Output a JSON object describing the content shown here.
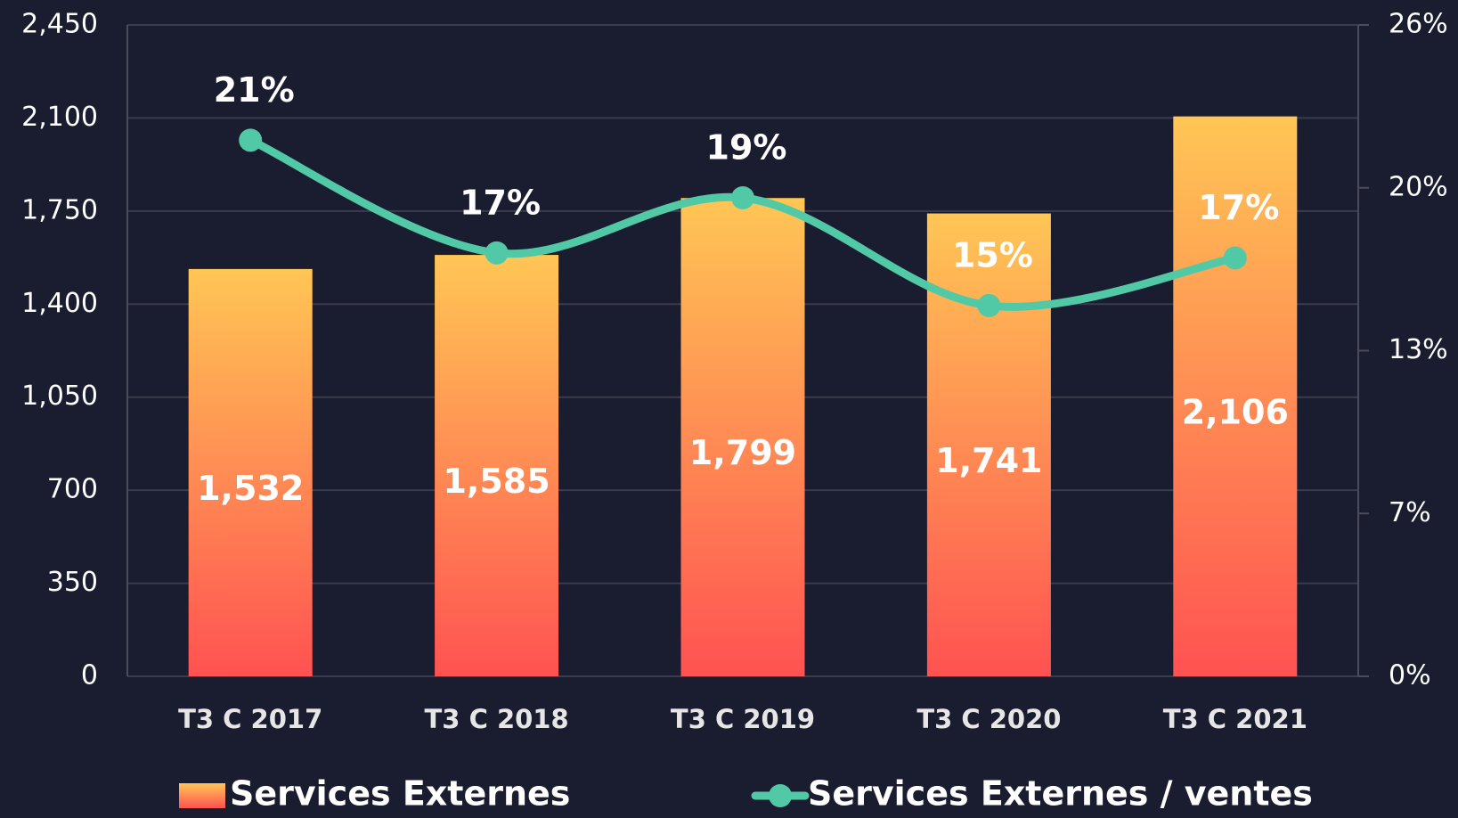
{
  "chart_data": {
    "type": "bar_line",
    "categories": [
      "T3 C 2017",
      "T3 C 2018",
      "T3 C 2019",
      "T3 C 2020",
      "T3 C 2021"
    ],
    "series": [
      {
        "name": "Services Externes",
        "type": "bar",
        "color": [
          "#ffc655",
          "#ff5252"
        ],
        "values": [
          1532,
          1585,
          1799,
          1741,
          2106
        ],
        "value_labels": [
          "1,532",
          "1,585",
          "1,799",
          "1,741",
          "2,106"
        ]
      },
      {
        "name": "Services Externes / ventes",
        "type": "line",
        "axis": "y2",
        "color": "#52c9a6",
        "values": [
          21.4,
          16.9,
          19.1,
          14.8,
          16.7
        ],
        "value_labels": [
          "21%",
          "17%",
          "19%",
          "15%",
          "17%"
        ]
      }
    ],
    "ylim": [
      0,
      2450
    ],
    "yticks": [
      0,
      350,
      700,
      {
        "value": 1050,
        "label": "1,050"
      },
      {
        "value": 1400,
        "label": "1,400"
      },
      {
        "value": 1750,
        "label": "1,750"
      },
      {
        "value": 2100,
        "label": "2,100"
      },
      {
        "value": 2450,
        "label": "2,450"
      }
    ],
    "y2lim": [
      0,
      26
    ],
    "y2ticks": [
      {
        "value": 0,
        "label": "0%"
      },
      {
        "value": 6.5,
        "label": "7%"
      },
      {
        "value": 13,
        "label": "13%"
      },
      {
        "value": 19.5,
        "label": "20%"
      },
      {
        "value": 26,
        "label": "26%"
      }
    ],
    "grid": true
  }
}
